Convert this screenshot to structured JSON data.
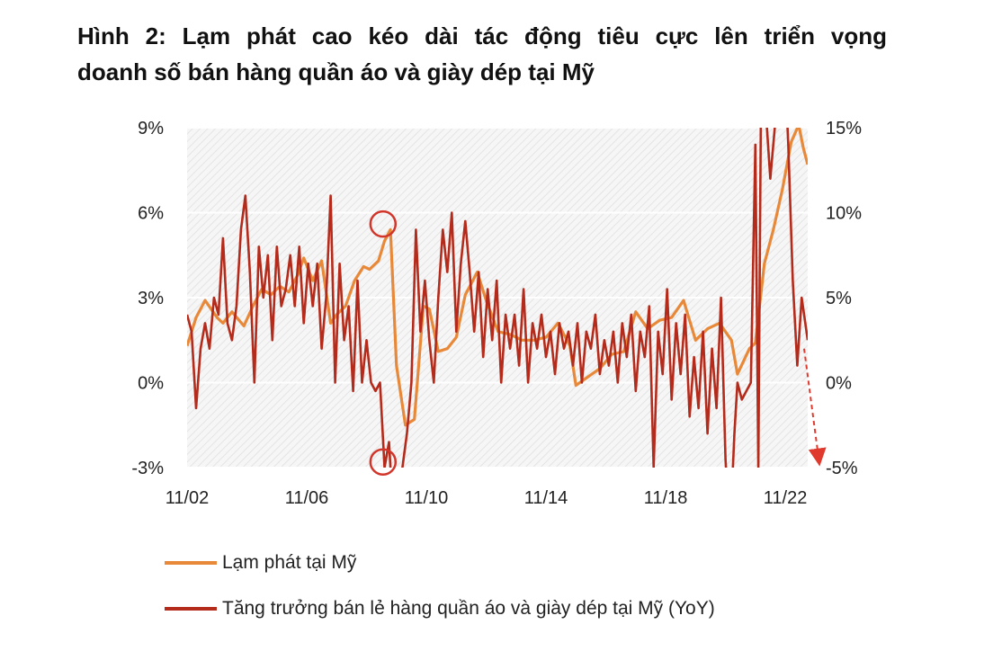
{
  "title_line1": "Hình 2: Lạm phát cao kéo dài tác động tiêu cực lên triển vọng",
  "title_line2": "doanh số bán hàng quần áo và giày dép tại Mỹ",
  "colors": {
    "inflation": "#E8893A",
    "retail": "#B52B1B",
    "arrow": "#E03A2E",
    "circle": "#D2362B",
    "plot_bg": "#f4f4f4"
  },
  "chart_data": {
    "type": "line",
    "x_tick_labels": [
      "11/02",
      "11/06",
      "11/10",
      "11/14",
      "11/18",
      "11/22"
    ],
    "x_tick_years": [
      2002,
      2006,
      2010,
      2014,
      2018,
      2022
    ],
    "x_range": [
      2002.0,
      2022.75
    ],
    "y_left": {
      "tick_labels": [
        "9%",
        "6%",
        "3%",
        "0%",
        "-3%"
      ],
      "ticks": [
        9,
        6,
        3,
        0,
        -3
      ],
      "range": [
        -3,
        9
      ]
    },
    "y_right": {
      "tick_labels": [
        "15%",
        "10%",
        "5%",
        "0%",
        "-5%"
      ],
      "ticks": [
        15,
        10,
        5,
        0,
        -5
      ],
      "range": [
        -5,
        15
      ]
    },
    "grid": false,
    "legend_position": "bottom-left",
    "annotations": [
      "circle at inflation peak ~5.5% (mid 2008)",
      "circle at inflation trough ~-2.8% (mid 2008)",
      "dashed arrow forecast toward -5% (right axis)"
    ],
    "series": [
      {
        "name": "Lạm phát tại Mỹ",
        "axis": "left",
        "x": [
          2002.0,
          2002.3,
          2002.6,
          2003.0,
          2003.2,
          2003.5,
          2003.9,
          2004.2,
          2004.5,
          2004.8,
          2005.1,
          2005.4,
          2005.7,
          2005.9,
          2006.2,
          2006.5,
          2006.8,
          2007.0,
          2007.3,
          2007.6,
          2007.9,
          2008.1,
          2008.4,
          2008.6,
          2008.8,
          2009.0,
          2009.3,
          2009.6,
          2009.9,
          2010.1,
          2010.4,
          2010.7,
          2011.0,
          2011.3,
          2011.7,
          2012.0,
          2012.4,
          2012.8,
          2013.2,
          2013.6,
          2014.0,
          2014.4,
          2014.8,
          2015.0,
          2015.4,
          2015.8,
          2016.2,
          2016.6,
          2017.0,
          2017.4,
          2017.8,
          2018.2,
          2018.6,
          2019.0,
          2019.4,
          2019.8,
          2020.2,
          2020.4,
          2020.8,
          2021.0,
          2021.3,
          2021.6,
          2021.9,
          2022.2,
          2022.45,
          2022.6,
          2022.75
        ],
        "y": [
          1.3,
          2.3,
          2.9,
          2.3,
          2.1,
          2.5,
          2.0,
          2.7,
          3.3,
          3.1,
          3.4,
          3.2,
          3.8,
          4.4,
          3.6,
          4.3,
          2.1,
          2.4,
          2.7,
          3.6,
          4.1,
          4.0,
          4.3,
          5.0,
          5.4,
          0.6,
          -1.5,
          -1.3,
          2.7,
          2.6,
          1.1,
          1.2,
          1.6,
          3.1,
          3.9,
          2.9,
          1.8,
          1.7,
          1.5,
          1.5,
          1.6,
          2.1,
          1.3,
          -0.1,
          0.2,
          0.5,
          1.0,
          1.1,
          2.5,
          1.9,
          2.2,
          2.3,
          2.9,
          1.5,
          1.9,
          2.1,
          1.5,
          0.3,
          1.2,
          1.4,
          4.2,
          5.4,
          6.8,
          8.5,
          9.1,
          8.3,
          7.7
        ]
      },
      {
        "name": "Tăng trưởng bán lẻ hàng quần áo và giày dép tại Mỹ (YoY)",
        "axis": "right",
        "x": [
          2002.0,
          2002.15,
          2002.3,
          2002.45,
          2002.6,
          2002.75,
          2002.9,
          2003.05,
          2003.2,
          2003.35,
          2003.5,
          2003.65,
          2003.8,
          2003.95,
          2004.1,
          2004.25,
          2004.4,
          2004.55,
          2004.7,
          2004.85,
          2005.0,
          2005.15,
          2005.3,
          2005.45,
          2005.6,
          2005.75,
          2005.9,
          2006.05,
          2006.2,
          2006.35,
          2006.5,
          2006.65,
          2006.8,
          2006.95,
          2007.1,
          2007.25,
          2007.4,
          2007.55,
          2007.7,
          2007.85,
          2008.0,
          2008.15,
          2008.3,
          2008.45,
          2008.6,
          2008.75,
          2008.9,
          2009.05,
          2009.2,
          2009.35,
          2009.5,
          2009.65,
          2009.8,
          2009.95,
          2010.1,
          2010.25,
          2010.4,
          2010.55,
          2010.7,
          2010.85,
          2011.0,
          2011.15,
          2011.3,
          2011.45,
          2011.6,
          2011.75,
          2011.9,
          2012.05,
          2012.2,
          2012.35,
          2012.5,
          2012.65,
          2012.8,
          2012.95,
          2013.1,
          2013.25,
          2013.4,
          2013.55,
          2013.7,
          2013.85,
          2014.0,
          2014.15,
          2014.3,
          2014.45,
          2014.6,
          2014.75,
          2014.9,
          2015.05,
          2015.2,
          2015.35,
          2015.5,
          2015.65,
          2015.8,
          2015.95,
          2016.1,
          2016.25,
          2016.4,
          2016.55,
          2016.7,
          2016.85,
          2017.0,
          2017.15,
          2017.3,
          2017.45,
          2017.6,
          2017.75,
          2017.9,
          2018.05,
          2018.2,
          2018.35,
          2018.5,
          2018.65,
          2018.8,
          2018.95,
          2019.1,
          2019.25,
          2019.4,
          2019.55,
          2019.7,
          2019.85,
          2020.0,
          2020.15,
          2020.3,
          2020.4,
          2020.55,
          2020.7,
          2020.85,
          2021.0,
          2021.1,
          2021.2,
          2021.35,
          2021.5,
          2021.65,
          2021.8,
          2021.95,
          2022.1,
          2022.25,
          2022.4,
          2022.55,
          2022.75
        ],
        "y": [
          4.0,
          3.0,
          -1.5,
          2.0,
          3.5,
          2.0,
          5.0,
          4.0,
          8.5,
          3.5,
          2.5,
          4.5,
          9.0,
          11.0,
          6.5,
          0.0,
          8.0,
          5.0,
          7.5,
          2.5,
          8.0,
          4.5,
          5.5,
          7.5,
          4.5,
          8.0,
          3.5,
          7.0,
          4.5,
          7.0,
          2.0,
          5.0,
          11.0,
          0.0,
          7.0,
          2.5,
          4.5,
          -0.5,
          6.0,
          0.0,
          2.5,
          0.0,
          -0.5,
          0.0,
          -5.0,
          -3.5,
          -8.0,
          -9.0,
          -5.0,
          -3.0,
          0.0,
          9.0,
          3.0,
          6.0,
          2.5,
          0.0,
          5.0,
          9.0,
          6.5,
          10.0,
          3.0,
          7.0,
          9.5,
          6.5,
          3.0,
          6.5,
          1.5,
          5.5,
          2.5,
          6.0,
          0.0,
          4.0,
          2.0,
          4.0,
          1.0,
          5.5,
          0.0,
          3.5,
          2.0,
          4.0,
          1.5,
          3.0,
          0.5,
          3.5,
          2.0,
          3.0,
          1.0,
          3.5,
          0.0,
          3.0,
          2.0,
          4.0,
          0.5,
          2.5,
          1.0,
          3.0,
          0.0,
          3.5,
          1.5,
          4.0,
          -0.5,
          3.0,
          1.5,
          4.5,
          -5.0,
          3.0,
          0.5,
          5.5,
          -1.0,
          3.5,
          0.5,
          4.0,
          -2.0,
          1.5,
          -1.5,
          3.0,
          -3.0,
          2.0,
          -1.5,
          5.0,
          -4.5,
          -9.0,
          -3.0,
          0.0,
          -1.0,
          -0.5,
          0.0,
          14.0,
          -5.0,
          20.0,
          16.0,
          12.0,
          15.0,
          18.0,
          20.0,
          14.0,
          6.0,
          1.0,
          5.0,
          2.5
        ]
      }
    ]
  },
  "legend": {
    "inflation": "Lạm phát tại Mỹ",
    "retail": "Tăng trưởng bán lẻ hàng quần áo và giày dép tại Mỹ (YoY)"
  }
}
